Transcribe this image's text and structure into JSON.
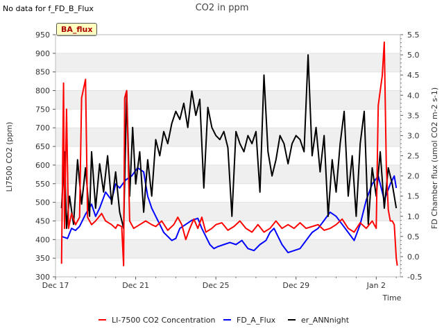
{
  "note": "No data for f_FD_B_Flux",
  "badge": "BA_flux",
  "chart_data": {
    "type": "line",
    "title": "CO2 in ppm",
    "xlabel": "Time",
    "ylabel": "LI7500 CO2 (ppm)",
    "ylabel_right": "FD Chamber flux (umol CO2 m-2 s-1)",
    "x_ticks": [
      "Dec 17",
      "Dec 21",
      "Dec 25",
      "Dec 29",
      "Jan 2"
    ],
    "xlim": [
      0,
      17.2
    ],
    "ylim": [
      300,
      950
    ],
    "ylim_right": [
      -0.5,
      5.5
    ],
    "y_ticks": [
      300,
      350,
      400,
      450,
      500,
      550,
      600,
      650,
      700,
      750,
      800,
      850,
      900,
      950
    ],
    "y_ticks_right": [
      -0.5,
      0.0,
      0.5,
      1.0,
      1.5,
      2.0,
      2.5,
      3.0,
      3.5,
      4.0,
      4.5,
      5.0,
      5.5
    ],
    "grid": true,
    "legend_position": "bottom",
    "series": [
      {
        "name": "LI-7500 CO2 Concentration",
        "axis": "left",
        "color": "#ff0000",
        "points": [
          [
            0.3,
            335
          ],
          [
            0.4,
            820
          ],
          [
            0.45,
            430
          ],
          [
            0.55,
            750
          ],
          [
            0.65,
            430
          ],
          [
            0.8,
            470
          ],
          [
            1.0,
            440
          ],
          [
            1.2,
            460
          ],
          [
            1.3,
            780
          ],
          [
            1.5,
            830
          ],
          [
            1.6,
            460
          ],
          [
            1.8,
            440
          ],
          [
            2.0,
            450
          ],
          [
            2.3,
            470
          ],
          [
            2.5,
            450
          ],
          [
            2.8,
            440
          ],
          [
            3.0,
            430
          ],
          [
            3.1,
            440
          ],
          [
            3.3,
            435
          ],
          [
            3.4,
            330
          ],
          [
            3.45,
            780
          ],
          [
            3.55,
            800
          ],
          [
            3.7,
            450
          ],
          [
            3.9,
            430
          ],
          [
            4.2,
            440
          ],
          [
            4.5,
            450
          ],
          [
            4.8,
            440
          ],
          [
            5.0,
            435
          ],
          [
            5.3,
            450
          ],
          [
            5.6,
            425
          ],
          [
            5.9,
            440
          ],
          [
            6.1,
            460
          ],
          [
            6.3,
            440
          ],
          [
            6.5,
            400
          ],
          [
            6.7,
            430
          ],
          [
            6.9,
            455
          ],
          [
            7.1,
            430
          ],
          [
            7.3,
            460
          ],
          [
            7.5,
            420
          ],
          [
            7.8,
            430
          ],
          [
            8.0,
            440
          ],
          [
            8.3,
            445
          ],
          [
            8.6,
            425
          ],
          [
            8.9,
            435
          ],
          [
            9.2,
            450
          ],
          [
            9.5,
            430
          ],
          [
            9.8,
            420
          ],
          [
            10.1,
            440
          ],
          [
            10.4,
            420
          ],
          [
            10.7,
            430
          ],
          [
            11.0,
            450
          ],
          [
            11.3,
            430
          ],
          [
            11.6,
            440
          ],
          [
            11.9,
            430
          ],
          [
            12.2,
            445
          ],
          [
            12.5,
            430
          ],
          [
            12.8,
            435
          ],
          [
            13.1,
            440
          ],
          [
            13.4,
            425
          ],
          [
            13.7,
            430
          ],
          [
            14.0,
            440
          ],
          [
            14.3,
            455
          ],
          [
            14.6,
            430
          ],
          [
            14.9,
            420
          ],
          [
            15.2,
            445
          ],
          [
            15.5,
            430
          ],
          [
            15.8,
            450
          ],
          [
            16.0,
            430
          ],
          [
            16.1,
            760
          ],
          [
            16.2,
            800
          ],
          [
            16.3,
            840
          ],
          [
            16.4,
            930
          ],
          [
            16.5,
            600
          ],
          [
            16.6,
            480
          ],
          [
            16.7,
            450
          ],
          [
            16.8,
            450
          ],
          [
            16.9,
            440
          ],
          [
            17.0,
            350
          ],
          [
            17.05,
            330
          ]
        ]
      },
      {
        "name": "FD_A_Flux",
        "axis": "right",
        "color": "#0000ff",
        "points": [
          [
            0.3,
            0.5
          ],
          [
            0.6,
            0.45
          ],
          [
            0.8,
            0.7
          ],
          [
            1.0,
            0.65
          ],
          [
            1.2,
            0.75
          ],
          [
            1.5,
            1.05
          ],
          [
            1.8,
            1.3
          ],
          [
            2.0,
            1.0
          ],
          [
            2.2,
            1.2
          ],
          [
            2.5,
            1.6
          ],
          [
            2.8,
            1.4
          ],
          [
            3.0,
            1.8
          ],
          [
            3.2,
            1.7
          ],
          [
            3.5,
            1.9
          ],
          [
            3.8,
            2.0
          ],
          [
            4.1,
            2.2
          ],
          [
            4.4,
            2.1
          ],
          [
            4.6,
            1.5
          ],
          [
            4.8,
            1.2
          ],
          [
            5.0,
            1.0
          ],
          [
            5.2,
            0.8
          ],
          [
            5.4,
            0.6
          ],
          [
            5.6,
            0.5
          ],
          [
            5.8,
            0.4
          ],
          [
            6.0,
            0.45
          ],
          [
            6.2,
            0.7
          ],
          [
            6.5,
            0.8
          ],
          [
            6.8,
            0.9
          ],
          [
            7.1,
            0.95
          ],
          [
            7.3,
            0.7
          ],
          [
            7.5,
            0.5
          ],
          [
            7.7,
            0.3
          ],
          [
            7.9,
            0.2
          ],
          [
            8.1,
            0.25
          ],
          [
            8.4,
            0.3
          ],
          [
            8.7,
            0.35
          ],
          [
            9.0,
            0.3
          ],
          [
            9.3,
            0.4
          ],
          [
            9.6,
            0.2
          ],
          [
            9.9,
            0.15
          ],
          [
            10.2,
            0.3
          ],
          [
            10.5,
            0.4
          ],
          [
            10.7,
            0.6
          ],
          [
            10.9,
            0.7
          ],
          [
            11.1,
            0.5
          ],
          [
            11.3,
            0.3
          ],
          [
            11.6,
            0.1
          ],
          [
            11.9,
            0.15
          ],
          [
            12.2,
            0.2
          ],
          [
            12.5,
            0.4
          ],
          [
            12.8,
            0.6
          ],
          [
            13.1,
            0.7
          ],
          [
            13.4,
            0.9
          ],
          [
            13.7,
            1.1
          ],
          [
            14.0,
            1.0
          ],
          [
            14.3,
            0.8
          ],
          [
            14.6,
            0.6
          ],
          [
            14.9,
            0.4
          ],
          [
            15.2,
            0.8
          ],
          [
            15.5,
            1.4
          ],
          [
            15.8,
            1.8
          ],
          [
            16.1,
            2.0
          ],
          [
            16.4,
            1.4
          ],
          [
            16.7,
            1.8
          ],
          [
            16.9,
            2.0
          ],
          [
            17.0,
            1.7
          ]
        ]
      },
      {
        "name": "er_ANNnight",
        "axis": "right",
        "color": "#000000",
        "points": [
          [
            0.3,
            1.2
          ],
          [
            0.45,
            2.6
          ],
          [
            0.55,
            0.7
          ],
          [
            0.7,
            1.5
          ],
          [
            0.9,
            0.8
          ],
          [
            1.1,
            2.4
          ],
          [
            1.3,
            1.3
          ],
          [
            1.5,
            2.2
          ],
          [
            1.7,
            1.0
          ],
          [
            1.8,
            2.6
          ],
          [
            2.0,
            1.2
          ],
          [
            2.2,
            2.3
          ],
          [
            2.4,
            1.6
          ],
          [
            2.6,
            2.5
          ],
          [
            2.8,
            1.3
          ],
          [
            3.0,
            2.1
          ],
          [
            3.2,
            1.1
          ],
          [
            3.4,
            0.7
          ],
          [
            3.55,
            4.1
          ],
          [
            3.7,
            1.5
          ],
          [
            3.85,
            3.2
          ],
          [
            4.0,
            1.8
          ],
          [
            4.2,
            2.6
          ],
          [
            4.4,
            1.1
          ],
          [
            4.6,
            2.4
          ],
          [
            4.8,
            1.5
          ],
          [
            5.0,
            2.9
          ],
          [
            5.2,
            2.5
          ],
          [
            5.4,
            3.1
          ],
          [
            5.6,
            2.8
          ],
          [
            5.8,
            3.3
          ],
          [
            6.0,
            3.6
          ],
          [
            6.2,
            3.4
          ],
          [
            6.4,
            3.8
          ],
          [
            6.6,
            3.2
          ],
          [
            6.8,
            4.1
          ],
          [
            7.0,
            3.5
          ],
          [
            7.2,
            3.9
          ],
          [
            7.4,
            1.7
          ],
          [
            7.6,
            3.7
          ],
          [
            7.8,
            3.2
          ],
          [
            8.0,
            3.0
          ],
          [
            8.2,
            2.9
          ],
          [
            8.4,
            3.1
          ],
          [
            8.6,
            2.7
          ],
          [
            8.8,
            1.0
          ],
          [
            9.0,
            3.1
          ],
          [
            9.2,
            2.8
          ],
          [
            9.4,
            2.6
          ],
          [
            9.6,
            3.0
          ],
          [
            9.8,
            2.8
          ],
          [
            10.0,
            3.1
          ],
          [
            10.2,
            1.6
          ],
          [
            10.4,
            4.5
          ],
          [
            10.6,
            2.6
          ],
          [
            10.8,
            2.0
          ],
          [
            11.0,
            2.4
          ],
          [
            11.2,
            3.0
          ],
          [
            11.4,
            2.8
          ],
          [
            11.6,
            2.3
          ],
          [
            11.8,
            2.8
          ],
          [
            12.0,
            3.0
          ],
          [
            12.2,
            2.9
          ],
          [
            12.4,
            2.6
          ],
          [
            12.6,
            5.0
          ],
          [
            12.8,
            2.5
          ],
          [
            13.0,
            3.2
          ],
          [
            13.2,
            2.1
          ],
          [
            13.4,
            3.0
          ],
          [
            13.6,
            1.0
          ],
          [
            13.8,
            2.4
          ],
          [
            14.0,
            1.6
          ],
          [
            14.2,
            2.8
          ],
          [
            14.4,
            3.6
          ],
          [
            14.6,
            1.5
          ],
          [
            14.8,
            2.5
          ],
          [
            15.0,
            1.0
          ],
          [
            15.2,
            2.8
          ],
          [
            15.4,
            3.6
          ],
          [
            15.6,
            0.8
          ],
          [
            15.8,
            2.2
          ],
          [
            16.0,
            1.5
          ],
          [
            16.2,
            2.6
          ],
          [
            16.4,
            1.2
          ],
          [
            16.6,
            2.2
          ],
          [
            16.8,
            1.8
          ],
          [
            17.0,
            1.2
          ]
        ]
      }
    ]
  }
}
